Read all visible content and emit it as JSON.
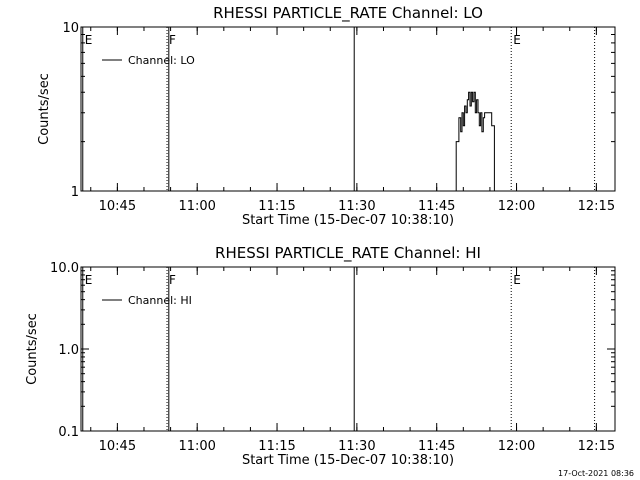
{
  "footer": {
    "timestamp": "17-Oct-2021 08:36"
  },
  "chart_data": [
    {
      "type": "line",
      "title": "RHESSI PARTICLE_RATE Channel: LO",
      "xlabel": "Start Time (15-Dec-07 10:38:10)",
      "ylabel": "Counts/sec",
      "y_scale": "log",
      "ylim": [
        1,
        10
      ],
      "y_ticks": [
        {
          "value": 1,
          "label": "1"
        },
        {
          "value": 10,
          "label": "10"
        }
      ],
      "xlim": [
        "10:38:10",
        "12:18:30"
      ],
      "x_ticks": [
        {
          "time": "10:45",
          "label": "10:45"
        },
        {
          "time": "11:00",
          "label": "11:00"
        },
        {
          "time": "11:15",
          "label": "11:15"
        },
        {
          "time": "11:30",
          "label": "11:30"
        },
        {
          "time": "11:45",
          "label": "11:45"
        },
        {
          "time": "12:00",
          "label": "12:00"
        },
        {
          "time": "12:15",
          "label": "12:15"
        }
      ],
      "x_minor_step_minutes": 5,
      "legend": {
        "placement": "top-left",
        "label": "Channel: LO"
      },
      "markers": [
        {
          "time": "10:38:30",
          "label": "E",
          "style": "solid"
        },
        {
          "time": "10:54:20",
          "label": "F",
          "style": "dotted"
        },
        {
          "time": "10:54:40",
          "label": "",
          "style": "solid"
        },
        {
          "time": "11:29:30",
          "label": "",
          "style": "solid"
        },
        {
          "time": "11:59:00",
          "label": "E",
          "style": "dotted"
        },
        {
          "time": "12:14:40",
          "label": "",
          "style": "dotted"
        }
      ],
      "series": [
        {
          "name": "Channel: LO",
          "points": [
            [
              "11:48:40",
              1
            ],
            [
              "11:48:40",
              2
            ],
            [
              "11:49:10",
              2
            ],
            [
              "11:49:10",
              2.8
            ],
            [
              "11:49:30",
              2.8
            ],
            [
              "11:49:30",
              2.3
            ],
            [
              "11:49:45",
              2.3
            ],
            [
              "11:49:45",
              3.0
            ],
            [
              "11:50:00",
              3.0
            ],
            [
              "11:50:00",
              2.5
            ],
            [
              "11:50:15",
              2.5
            ],
            [
              "11:50:15",
              3.3
            ],
            [
              "11:50:30",
              3.3
            ],
            [
              "11:50:30",
              3.0
            ],
            [
              "11:50:45",
              3.0
            ],
            [
              "11:50:45",
              3.6
            ],
            [
              "11:51:00",
              3.6
            ],
            [
              "11:51:00",
              4.0
            ],
            [
              "11:51:15",
              4.0
            ],
            [
              "11:51:15",
              3.3
            ],
            [
              "11:51:30",
              3.3
            ],
            [
              "11:51:30",
              4.0
            ],
            [
              "11:51:45",
              4.0
            ],
            [
              "11:51:45",
              3.5
            ],
            [
              "11:52:00",
              3.5
            ],
            [
              "11:52:00",
              4.0
            ],
            [
              "11:52:15",
              4.0
            ],
            [
              "11:52:15",
              3.0
            ],
            [
              "11:52:30",
              3.0
            ],
            [
              "11:52:30",
              3.6
            ],
            [
              "11:52:45",
              3.6
            ],
            [
              "11:52:45",
              3.0
            ],
            [
              "11:53:00",
              3.0
            ],
            [
              "11:53:00",
              2.5
            ],
            [
              "11:53:15",
              2.5
            ],
            [
              "11:53:15",
              3.0
            ],
            [
              "11:53:30",
              3.0
            ],
            [
              "11:53:30",
              2.3
            ],
            [
              "11:53:45",
              2.3
            ],
            [
              "11:53:45",
              2.8
            ],
            [
              "11:54:00",
              2.8
            ],
            [
              "11:54:00",
              3.0
            ],
            [
              "11:55:20",
              3.0
            ],
            [
              "11:55:20",
              2.5
            ],
            [
              "11:55:50",
              2.5
            ],
            [
              "11:55:50",
              1
            ]
          ]
        }
      ]
    },
    {
      "type": "line",
      "title": "RHESSI PARTICLE_RATE Channel: HI",
      "xlabel": "Start Time (15-Dec-07 10:38:10)",
      "ylabel": "Counts/sec",
      "y_scale": "log",
      "ylim": [
        0.1,
        10
      ],
      "y_ticks": [
        {
          "value": 0.1,
          "label": "0.1"
        },
        {
          "value": 1,
          "label": "1.0"
        },
        {
          "value": 10,
          "label": "10.0"
        }
      ],
      "xlim": [
        "10:38:10",
        "12:18:30"
      ],
      "x_ticks": [
        {
          "time": "10:45",
          "label": "10:45"
        },
        {
          "time": "11:00",
          "label": "11:00"
        },
        {
          "time": "11:15",
          "label": "11:15"
        },
        {
          "time": "11:30",
          "label": "11:30"
        },
        {
          "time": "11:45",
          "label": "11:45"
        },
        {
          "time": "12:00",
          "label": "12:00"
        },
        {
          "time": "12:15",
          "label": "12:15"
        }
      ],
      "x_minor_step_minutes": 5,
      "legend": {
        "placement": "top-left",
        "label": "Channel: HI"
      },
      "markers": [
        {
          "time": "10:38:30",
          "label": "E",
          "style": "solid"
        },
        {
          "time": "10:54:20",
          "label": "F",
          "style": "dotted"
        },
        {
          "time": "10:54:40",
          "label": "",
          "style": "solid"
        },
        {
          "time": "11:29:30",
          "label": "",
          "style": "solid"
        },
        {
          "time": "11:59:00",
          "label": "E",
          "style": "dotted"
        },
        {
          "time": "12:14:40",
          "label": "",
          "style": "dotted"
        }
      ],
      "series": [
        {
          "name": "Channel: HI",
          "points": []
        }
      ]
    }
  ]
}
